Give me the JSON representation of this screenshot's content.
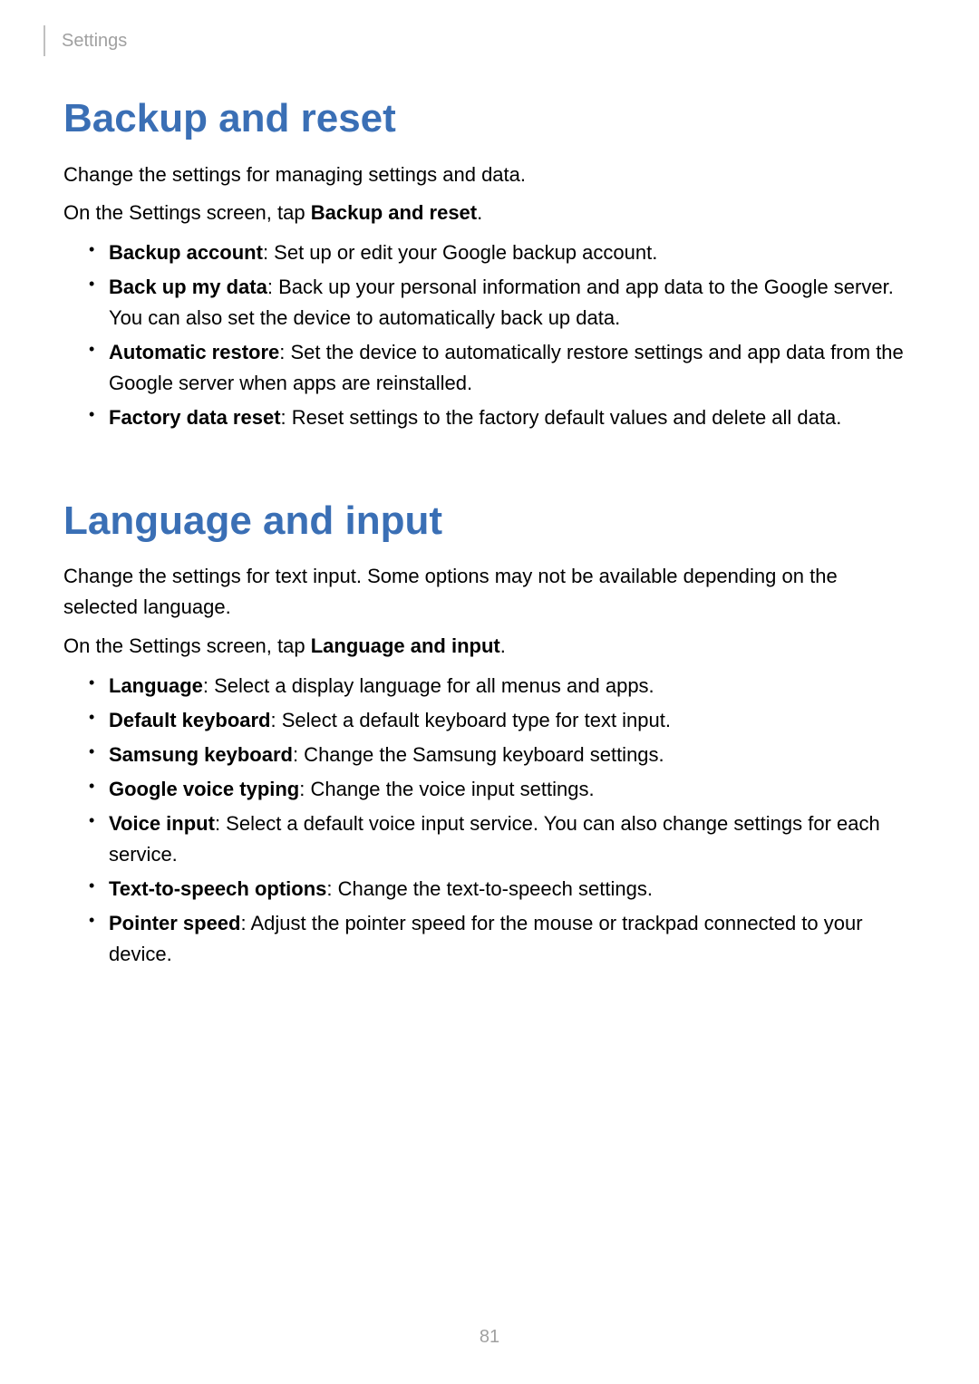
{
  "header": {
    "tab_label": "Settings"
  },
  "section1": {
    "title": "Backup and reset",
    "intro": "Change the settings for managing settings and data.",
    "instruction_prefix": "On the Settings screen, tap ",
    "instruction_bold": "Backup and reset",
    "instruction_suffix": ".",
    "items": [
      {
        "term": "Backup account",
        "desc": ": Set up or edit your Google backup account."
      },
      {
        "term": "Back up my data",
        "desc": ": Back up your personal information and app data to the Google server. You can also set the device to automatically back up data."
      },
      {
        "term": "Automatic restore",
        "desc": ": Set the device to automatically restore settings and app data from the Google server when apps are reinstalled."
      },
      {
        "term": "Factory data reset",
        "desc": ": Reset settings to the factory default values and delete all data."
      }
    ]
  },
  "section2": {
    "title": "Language and input",
    "intro": "Change the settings for text input. Some options may not be available depending on the selected language.",
    "instruction_prefix": "On the Settings screen, tap ",
    "instruction_bold": "Language and input",
    "instruction_suffix": ".",
    "items": [
      {
        "term": "Language",
        "desc": ": Select a display language for all menus and apps."
      },
      {
        "term": "Default keyboard",
        "desc": ": Select a default keyboard type for text input."
      },
      {
        "term": "Samsung keyboard",
        "desc": ": Change the Samsung keyboard settings."
      },
      {
        "term": "Google voice typing",
        "desc": ": Change the voice input settings."
      },
      {
        "term": "Voice input",
        "desc": ": Select a default voice input service. You can also change settings for each service."
      },
      {
        "term": "Text-to-speech options",
        "desc": ": Change the text-to-speech settings."
      },
      {
        "term": "Pointer speed",
        "desc": ": Adjust the pointer speed for the mouse or trackpad connected to your device."
      }
    ]
  },
  "page_number": "81",
  "colors": {
    "heading": "#3a6fb5",
    "muted": "#a0a0a0",
    "text": "#000000",
    "background": "#ffffff"
  },
  "typography": {
    "heading_fontsize": 44,
    "body_fontsize": 22,
    "header_tab_fontsize": 20,
    "page_number_fontsize": 20
  }
}
